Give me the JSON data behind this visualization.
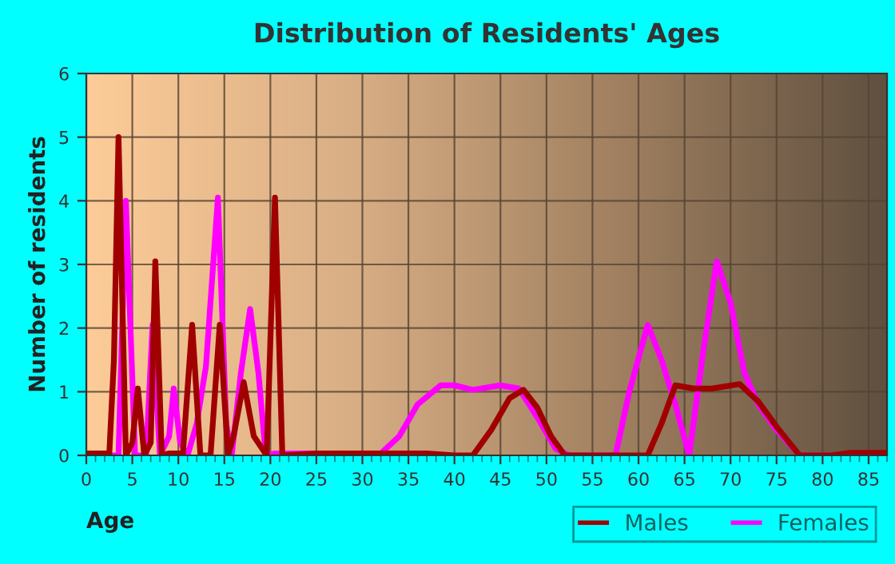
{
  "chart_data": {
    "type": "line",
    "title": "Distribution of Residents' Ages",
    "xlabel": "Age",
    "ylabel": "Number of residents",
    "xlim": [
      0,
      87
    ],
    "xticks": [
      0,
      5,
      10,
      15,
      20,
      25,
      30,
      35,
      40,
      45,
      50,
      55,
      60,
      65,
      70,
      75,
      80,
      85
    ],
    "ylim": [
      0,
      6
    ],
    "yticks": [
      0,
      1,
      2,
      3,
      4,
      5,
      6
    ],
    "grid": true,
    "legend": "bottom right",
    "marker": "none",
    "line_style": "solid",
    "series": [
      {
        "name": "Males",
        "color": "#a00000",
        "x": [
          0,
          2.5,
          3,
          3.5,
          4.3,
          5,
          5.6,
          6.3,
          7,
          7.5,
          8.2,
          9,
          10.5,
          11.5,
          12.4,
          13.5,
          14.5,
          15.4,
          16,
          17.1,
          18.2,
          19.6,
          20.5,
          21.3,
          25,
          30,
          37,
          40,
          42,
          44,
          46,
          47.5,
          49,
          50.5,
          52,
          61,
          62.5,
          64,
          66,
          68,
          71,
          73,
          75,
          77.5,
          81,
          83,
          87
        ],
        "values": [
          0.03,
          0.03,
          1.5,
          5,
          0,
          0.2,
          1.05,
          0,
          0.2,
          3.05,
          0,
          0.03,
          0.03,
          2.05,
          0,
          0,
          2.05,
          0,
          0.3,
          1.15,
          0.3,
          0,
          4.05,
          0,
          0.03,
          0.03,
          0.03,
          0,
          0,
          0.4,
          0.9,
          1.03,
          0.75,
          0.3,
          0,
          0,
          0.5,
          1.1,
          1.05,
          1.05,
          1.12,
          0.85,
          0.45,
          0,
          0,
          0.04,
          0.04
        ]
      },
      {
        "name": "Females",
        "color": "#ff00ff",
        "x": [
          0,
          3.5,
          4.3,
          5.3,
          6.5,
          7.2,
          8.0,
          9,
          9.5,
          10.2,
          11,
          12,
          13,
          14.3,
          15.2,
          15.8,
          16.8,
          17.8,
          18.7,
          19.5,
          20.5,
          25,
          32,
          34,
          36,
          38.5,
          40,
          42,
          45,
          47,
          49,
          51,
          52.5,
          57.5,
          59,
          61,
          62.5,
          64,
          65.5,
          67,
          68.5,
          70,
          71.5,
          73,
          75,
          77.5,
          87
        ],
        "values": [
          0,
          0,
          4,
          0,
          0,
          2.05,
          0,
          0.3,
          1.05,
          0.2,
          0,
          0.5,
          1.4,
          4.05,
          0.5,
          0,
          1.3,
          2.3,
          1.3,
          0,
          0.03,
          0.03,
          0.03,
          0.3,
          0.8,
          1.1,
          1.1,
          1.03,
          1.1,
          1.05,
          0.6,
          0.1,
          0,
          0,
          1.0,
          2.05,
          1.5,
          0.8,
          0,
          1.6,
          3.05,
          2.4,
          1.3,
          0.8,
          0.4,
          0,
          0
        ]
      }
    ]
  }
}
